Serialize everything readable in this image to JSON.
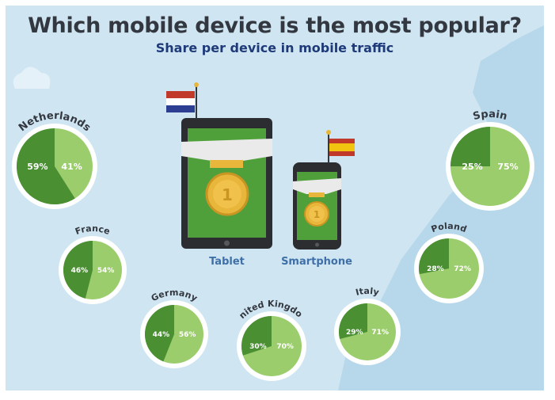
{
  "header": {
    "title": "Which mobile device is the most popular?",
    "subtitle": "Share per device in mobile traffic"
  },
  "devices": {
    "tablet_label": "Tablet",
    "smartphone_label": "Smartphone"
  },
  "colors": {
    "background": "#cfe6f2",
    "map": "#b6d8ea",
    "dark_green": "#4a8f32",
    "light_green": "#9ccd6c",
    "device_body": "#2c2d30",
    "medal_gold": "#e8b63a",
    "ribbon": "#eaeaea"
  },
  "chart_data": {
    "type": "pie",
    "series_labels": [
      "Smartphone",
      "Tablet"
    ],
    "countries": [
      {
        "name": "Netherlands",
        "dark": "59%",
        "light": "41%",
        "dark_value": 59,
        "light_value": 41
      },
      {
        "name": "France",
        "dark": "46%",
        "light": "54%",
        "dark_value": 46,
        "light_value": 54
      },
      {
        "name": "Germany",
        "dark": "44%",
        "light": "56%",
        "dark_value": 44,
        "light_value": 56
      },
      {
        "name": "United Kingdom",
        "dark": "30%",
        "light": "70%",
        "dark_value": 30,
        "light_value": 70
      },
      {
        "name": "Italy",
        "dark": "29%",
        "light": "71%",
        "dark_value": 29,
        "light_value": 71
      },
      {
        "name": "Poland",
        "dark": "28%",
        "light": "72%",
        "dark_value": 28,
        "light_value": 72
      },
      {
        "name": "Spain",
        "dark": "25%",
        "light": "75%",
        "dark_value": 25,
        "light_value": 75
      }
    ]
  }
}
